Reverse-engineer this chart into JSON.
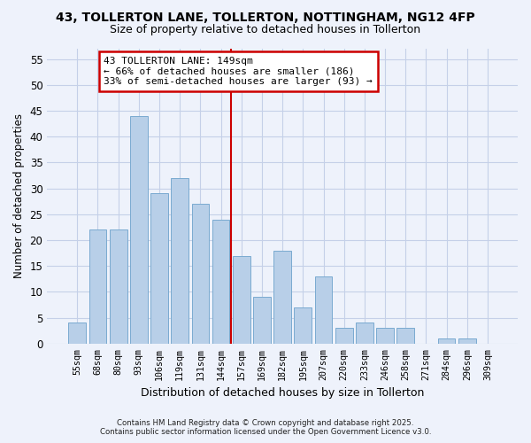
{
  "title1": "43, TOLLERTON LANE, TOLLERTON, NOTTINGHAM, NG12 4FP",
  "title2": "Size of property relative to detached houses in Tollerton",
  "xlabel": "Distribution of detached houses by size in Tollerton",
  "ylabel": "Number of detached properties",
  "bar_labels": [
    "55sqm",
    "68sqm",
    "80sqm",
    "93sqm",
    "106sqm",
    "119sqm",
    "131sqm",
    "144sqm",
    "157sqm",
    "169sqm",
    "182sqm",
    "195sqm",
    "207sqm",
    "220sqm",
    "233sqm",
    "246sqm",
    "258sqm",
    "271sqm",
    "284sqm",
    "296sqm",
    "309sqm"
  ],
  "bar_values": [
    4,
    22,
    22,
    44,
    29,
    32,
    27,
    24,
    17,
    9,
    18,
    7,
    13,
    3,
    4,
    3,
    3,
    0,
    1,
    1,
    0
  ],
  "bar_color": "#b8cfe8",
  "bar_edge_color": "#7aaad0",
  "vline_color": "#cc0000",
  "annotation_title": "43 TOLLERTON LANE: 149sqm",
  "annotation_line1": "← 66% of detached houses are smaller (186)",
  "annotation_line2": "33% of semi-detached houses are larger (93) →",
  "annotation_box_color": "#ffffff",
  "annotation_box_edge": "#cc0000",
  "ylim": [
    0,
    57
  ],
  "yticks": [
    0,
    5,
    10,
    15,
    20,
    25,
    30,
    35,
    40,
    45,
    50,
    55
  ],
  "footnote1": "Contains HM Land Registry data © Crown copyright and database right 2025.",
  "footnote2": "Contains public sector information licensed under the Open Government Licence v3.0.",
  "bg_color": "#eef2fb",
  "grid_color": "#c5d0e8"
}
